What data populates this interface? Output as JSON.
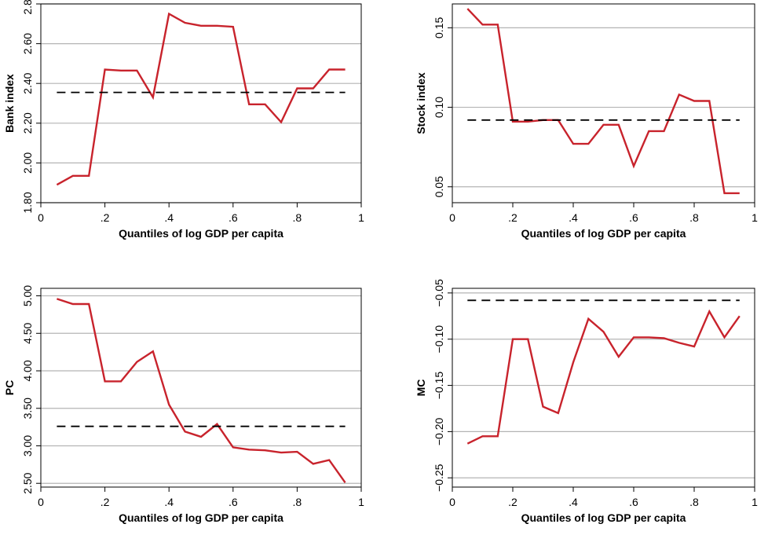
{
  "chart_data": [
    {
      "type": "line",
      "xlabel": "Quantiles of log GDP per capita",
      "ylabel": "Bank index",
      "xlim": [
        0,
        1
      ],
      "ylim": [
        1.8,
        2.8
      ],
      "xticks": [
        0,
        0.2,
        0.4,
        0.6,
        0.8,
        1
      ],
      "xtick_labels": [
        "0",
        ".2",
        ".4",
        ".6",
        ".8",
        "1"
      ],
      "yticks": [
        1.8,
        2.0,
        2.2,
        2.4,
        2.6,
        2.8
      ],
      "ytick_labels": [
        "1.80",
        "2.00",
        "2.20",
        "2.40",
        "2.60",
        "2.80"
      ],
      "grid": "horizontal",
      "line_color": "#c8232c",
      "dashed_color": "#000000",
      "series": [
        {
          "style": "solid",
          "x": [
            0.05,
            0.1,
            0.15,
            0.2,
            0.25,
            0.3,
            0.35,
            0.4,
            0.45,
            0.5,
            0.55,
            0.6,
            0.65,
            0.7,
            0.75,
            0.8,
            0.85,
            0.9,
            0.95
          ],
          "values": [
            1.89,
            1.935,
            1.935,
            2.47,
            2.465,
            2.465,
            2.33,
            2.75,
            2.705,
            2.69,
            2.69,
            2.685,
            2.295,
            2.295,
            2.205,
            2.375,
            2.375,
            2.47,
            2.47
          ]
        },
        {
          "style": "dashed",
          "x": [
            0.05,
            0.95
          ],
          "values": [
            2.355,
            2.355
          ]
        }
      ]
    },
    {
      "type": "line",
      "xlabel": "Quantiles of log GDP per capita",
      "ylabel": "Stock index",
      "xlim": [
        0,
        1
      ],
      "ylim": [
        0.04,
        0.165
      ],
      "xticks": [
        0,
        0.2,
        0.4,
        0.6,
        0.8,
        1
      ],
      "xtick_labels": [
        "0",
        ".2",
        ".4",
        ".6",
        ".8",
        "1"
      ],
      "yticks": [
        0.05,
        0.1,
        0.15
      ],
      "ytick_labels": [
        "0.05",
        "0.10",
        "0.15"
      ],
      "grid": "horizontal",
      "line_color": "#c8232c",
      "dashed_color": "#000000",
      "series": [
        {
          "style": "solid",
          "x": [
            0.05,
            0.1,
            0.15,
            0.2,
            0.25,
            0.3,
            0.35,
            0.4,
            0.45,
            0.5,
            0.55,
            0.6,
            0.65,
            0.7,
            0.75,
            0.8,
            0.85,
            0.9,
            0.95
          ],
          "values": [
            0.162,
            0.152,
            0.152,
            0.091,
            0.091,
            0.092,
            0.092,
            0.077,
            0.077,
            0.089,
            0.089,
            0.063,
            0.085,
            0.085,
            0.108,
            0.104,
            0.104,
            0.046,
            0.046
          ]
        },
        {
          "style": "dashed",
          "x": [
            0.05,
            0.95
          ],
          "values": [
            0.092,
            0.092
          ]
        }
      ]
    },
    {
      "type": "line",
      "xlabel": "Quantiles of log GDP per capita",
      "ylabel": "PC",
      "xlim": [
        0,
        1
      ],
      "ylim": [
        2.45,
        5.1
      ],
      "xticks": [
        0,
        0.2,
        0.4,
        0.6,
        0.8,
        1
      ],
      "xtick_labels": [
        "0",
        ".2",
        ".4",
        ".6",
        ".8",
        "1"
      ],
      "yticks": [
        2.5,
        3.0,
        3.5,
        4.0,
        4.5,
        5.0
      ],
      "ytick_labels": [
        "2.50",
        "3.00",
        "3.50",
        "4.00",
        "4.50",
        "5.00"
      ],
      "grid": "horizontal",
      "line_color": "#c8232c",
      "dashed_color": "#000000",
      "series": [
        {
          "style": "solid",
          "x": [
            0.05,
            0.1,
            0.15,
            0.2,
            0.25,
            0.3,
            0.35,
            0.4,
            0.45,
            0.5,
            0.55,
            0.6,
            0.65,
            0.7,
            0.75,
            0.8,
            0.85,
            0.9,
            0.95
          ],
          "values": [
            4.96,
            4.89,
            4.89,
            3.86,
            3.86,
            4.12,
            4.26,
            3.55,
            3.19,
            3.12,
            3.29,
            2.98,
            2.95,
            2.94,
            2.91,
            2.92,
            2.76,
            2.81,
            2.51
          ]
        },
        {
          "style": "dashed",
          "x": [
            0.05,
            0.95
          ],
          "values": [
            3.26,
            3.26
          ]
        }
      ]
    },
    {
      "type": "line",
      "xlabel": "Quantiles of log GDP per capita",
      "ylabel": "MC",
      "xlim": [
        0,
        1
      ],
      "ylim": [
        -0.26,
        -0.045
      ],
      "xticks": [
        0,
        0.2,
        0.4,
        0.6,
        0.8,
        1
      ],
      "xtick_labels": [
        "0",
        ".2",
        ".4",
        ".6",
        ".8",
        "1"
      ],
      "yticks": [
        -0.25,
        -0.2,
        -0.15,
        -0.1,
        -0.05
      ],
      "ytick_labels": [
        "−0.25",
        "−0.20",
        "−0.15",
        "−0.10",
        "−0.05"
      ],
      "grid": "horizontal",
      "line_color": "#c8232c",
      "dashed_color": "#000000",
      "series": [
        {
          "style": "solid",
          "x": [
            0.05,
            0.1,
            0.15,
            0.2,
            0.25,
            0.3,
            0.35,
            0.4,
            0.45,
            0.5,
            0.55,
            0.6,
            0.65,
            0.7,
            0.75,
            0.8,
            0.85,
            0.9,
            0.95
          ],
          "values": [
            -0.213,
            -0.205,
            -0.205,
            -0.1,
            -0.1,
            -0.173,
            -0.18,
            -0.125,
            -0.078,
            -0.092,
            -0.119,
            -0.098,
            -0.098,
            -0.099,
            -0.104,
            -0.108,
            -0.07,
            -0.098,
            -0.075
          ]
        },
        {
          "style": "dashed",
          "x": [
            0.05,
            0.95
          ],
          "values": [
            -0.058,
            -0.058
          ]
        }
      ]
    }
  ]
}
